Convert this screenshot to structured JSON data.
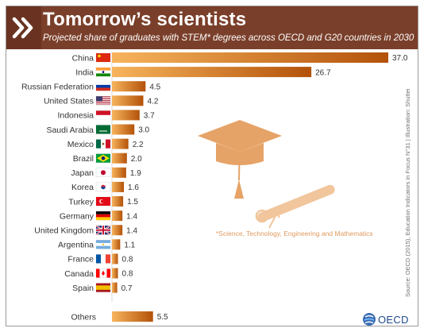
{
  "header": {
    "title": "Tomorrow’s scientists",
    "subtitle": "Projected share of graduates with STEM* degrees across OECD and G20 countries in 2030"
  },
  "footnote": "*Science, Technology, Engineering and Mathematics",
  "source": "Source: OECD (2015), Education Indicators in Focus N°31 | Illustration: Shutterstock",
  "brand": "OECD",
  "colors": {
    "header_bg": "#7a3f2a",
    "bar_dark": "#b3520a",
    "bar_light": "#f7b45c",
    "accent": "#e6a367",
    "footnote": "#e09a5e"
  },
  "icons": [
    "chevrons-icon",
    "graduation-cap-icon",
    "diploma-scroll-icon",
    "oecd-globe-icon"
  ],
  "chart_data": {
    "type": "bar",
    "orientation": "horizontal",
    "categories": [
      "China",
      "India",
      "Russian Federation",
      "United States",
      "Indonesia",
      "Saudi Arabia",
      "Mexico",
      "Brazil",
      "Japan",
      "Korea",
      "Turkey",
      "Germany",
      "United Kingdom",
      "Argentina",
      "France",
      "Canada",
      "Spain",
      "Others"
    ],
    "values": [
      37.0,
      26.7,
      4.5,
      4.2,
      3.7,
      3.0,
      2.2,
      2.0,
      1.9,
      1.6,
      1.5,
      1.4,
      1.4,
      1.1,
      0.8,
      0.8,
      0.7,
      5.5
    ],
    "value_labels": [
      "37.0",
      "26.7",
      "4.5",
      "4.2",
      "3.7",
      "3.0",
      "2.2",
      "2.0",
      "1.9",
      "1.6",
      "1.5",
      "1.4",
      "1.4",
      "1.1",
      "0.8",
      "0.8",
      "0.7",
      "5.5"
    ],
    "xlim": [
      0,
      37
    ],
    "grid": false,
    "legend": "none"
  }
}
